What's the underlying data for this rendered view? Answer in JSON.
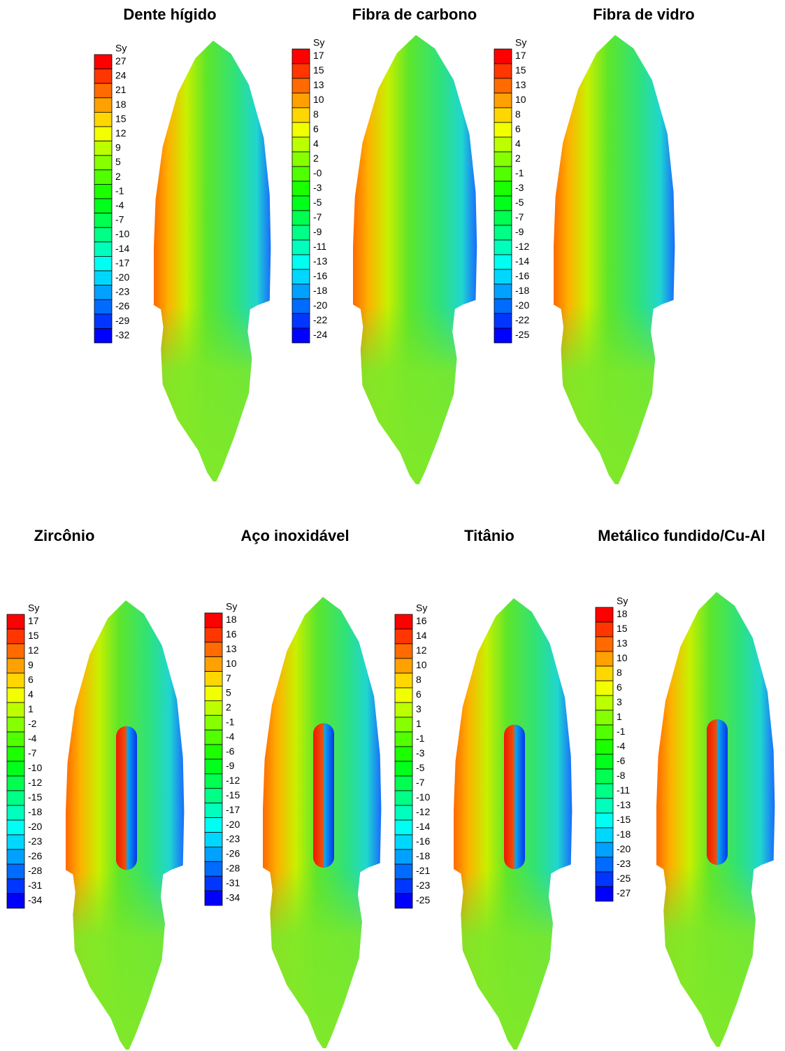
{
  "panels": [
    {
      "title": "Dente hígido",
      "legend_title": "Sy",
      "legend_labels": [
        "27",
        "24",
        "21",
        "18",
        "15",
        "12",
        "9",
        "5",
        "2",
        "-1",
        "-4",
        "-7",
        "-10",
        "-14",
        "-17",
        "-20",
        "-23",
        "-26",
        "-29",
        "-32"
      ]
    },
    {
      "title": "Fibra de carbono",
      "legend_title": "Sy",
      "legend_labels": [
        "17",
        "15",
        "13",
        "10",
        "8",
        "6",
        "4",
        "2",
        "-0",
        "-3",
        "-5",
        "-7",
        "-9",
        "-11",
        "-13",
        "-16",
        "-18",
        "-20",
        "-22",
        "-24"
      ]
    },
    {
      "title": "Fibra de vidro",
      "legend_title": "Sy",
      "legend_labels": [
        "17",
        "15",
        "13",
        "10",
        "8",
        "6",
        "4",
        "2",
        "-1",
        "-3",
        "-5",
        "-7",
        "-9",
        "-12",
        "-14",
        "-16",
        "-18",
        "-20",
        "-22",
        "-25"
      ]
    },
    {
      "title": "Zircônio",
      "legend_title": "Sy",
      "legend_labels": [
        "17",
        "15",
        "12",
        "9",
        "6",
        "4",
        "1",
        "-2",
        "-4",
        "-7",
        "-10",
        "-12",
        "-15",
        "-18",
        "-20",
        "-23",
        "-26",
        "-28",
        "-31",
        "-34"
      ]
    },
    {
      "title": "Aço inoxidável",
      "legend_title": "Sy",
      "legend_labels": [
        "18",
        "16",
        "13",
        "10",
        "7",
        "5",
        "2",
        "-1",
        "-4",
        "-6",
        "-9",
        "-12",
        "-15",
        "-17",
        "-20",
        "-23",
        "-26",
        "-28",
        "-31",
        "-34"
      ]
    },
    {
      "title": "Titânio",
      "legend_title": "Sy",
      "legend_labels": [
        "16",
        "14",
        "12",
        "10",
        "8",
        "6",
        "3",
        "1",
        "-1",
        "-3",
        "-5",
        "-7",
        "-10",
        "-12",
        "-14",
        "-16",
        "-18",
        "-21",
        "-23",
        "-25"
      ]
    },
    {
      "title": "Metálico fundido/Cu-Al",
      "legend_title": "Sy",
      "legend_labels": [
        "18",
        "15",
        "13",
        "10",
        "8",
        "6",
        "3",
        "1",
        "-1",
        "-4",
        "-6",
        "-8",
        "-11",
        "-13",
        "-15",
        "-18",
        "-20",
        "-23",
        "-25",
        "-27"
      ]
    }
  ]
}
